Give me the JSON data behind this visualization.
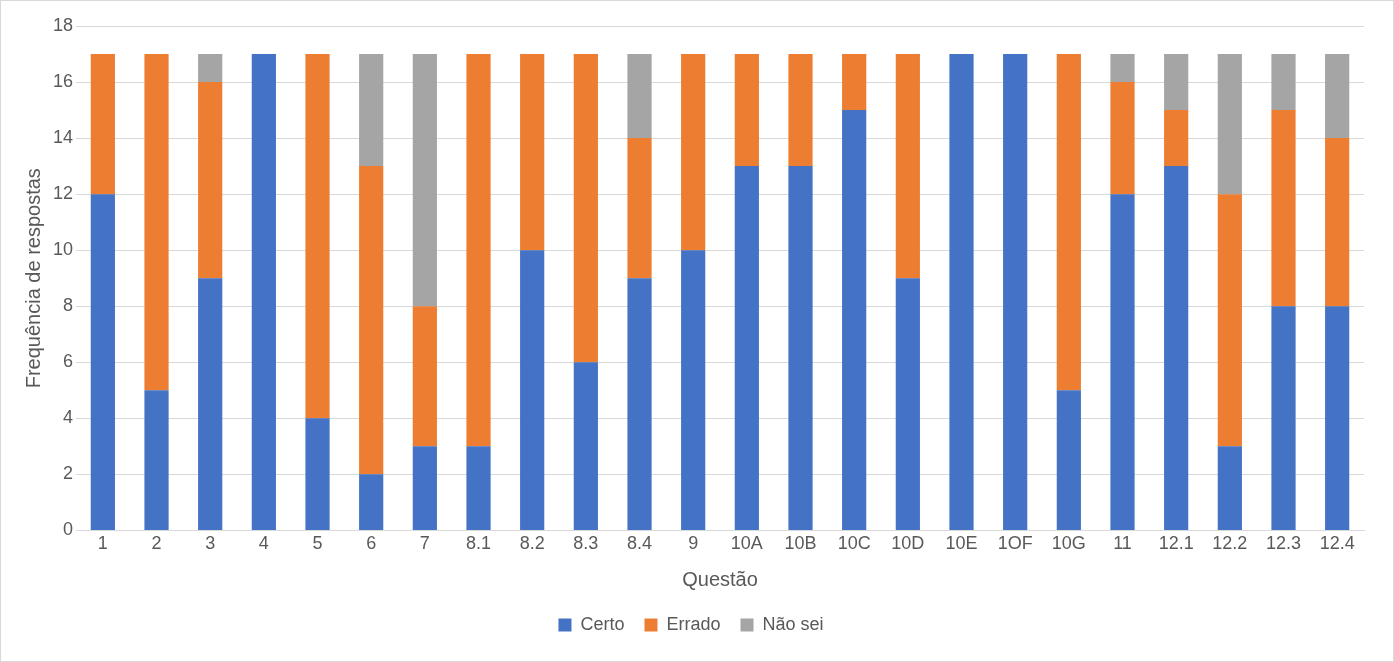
{
  "chart_data": {
    "type": "bar",
    "stacked": true,
    "xlabel": "Questão",
    "ylabel": "Frequência de respostas",
    "categories": [
      "1",
      "2",
      "3",
      "4",
      "5",
      "6",
      "7",
      "8.1",
      "8.2",
      "8.3",
      "8.4",
      "9",
      "10A",
      "10B",
      "10C",
      "10D",
      "10E",
      "1OF",
      "10G",
      "11",
      "12.1",
      "12.2",
      "12.3",
      "12.4"
    ],
    "series": [
      {
        "name": "Certo",
        "color": "#4472c4",
        "values": [
          12,
          5,
          9,
          17,
          4,
          2,
          3,
          3,
          10,
          6,
          9,
          10,
          13,
          13,
          15,
          9,
          17,
          17,
          5,
          12,
          13,
          3,
          8,
          8
        ]
      },
      {
        "name": "Errado",
        "color": "#ed7d31",
        "values": [
          5,
          12,
          7,
          0,
          13,
          11,
          5,
          14,
          7,
          11,
          5,
          7,
          4,
          4,
          2,
          8,
          0,
          0,
          12,
          4,
          2,
          9,
          7,
          6
        ]
      },
      {
        "name": "Não sei",
        "color": "#a5a5a5",
        "values": [
          0,
          0,
          1,
          0,
          0,
          4,
          9,
          0,
          0,
          0,
          3,
          0,
          0,
          0,
          0,
          0,
          0,
          0,
          0,
          1,
          2,
          5,
          2,
          3
        ]
      }
    ],
    "ylim": [
      0,
      18
    ],
    "yticks": [
      0,
      2,
      4,
      6,
      8,
      10,
      12,
      14,
      16,
      18
    ],
    "grid": "y",
    "legend": "bottom"
  }
}
